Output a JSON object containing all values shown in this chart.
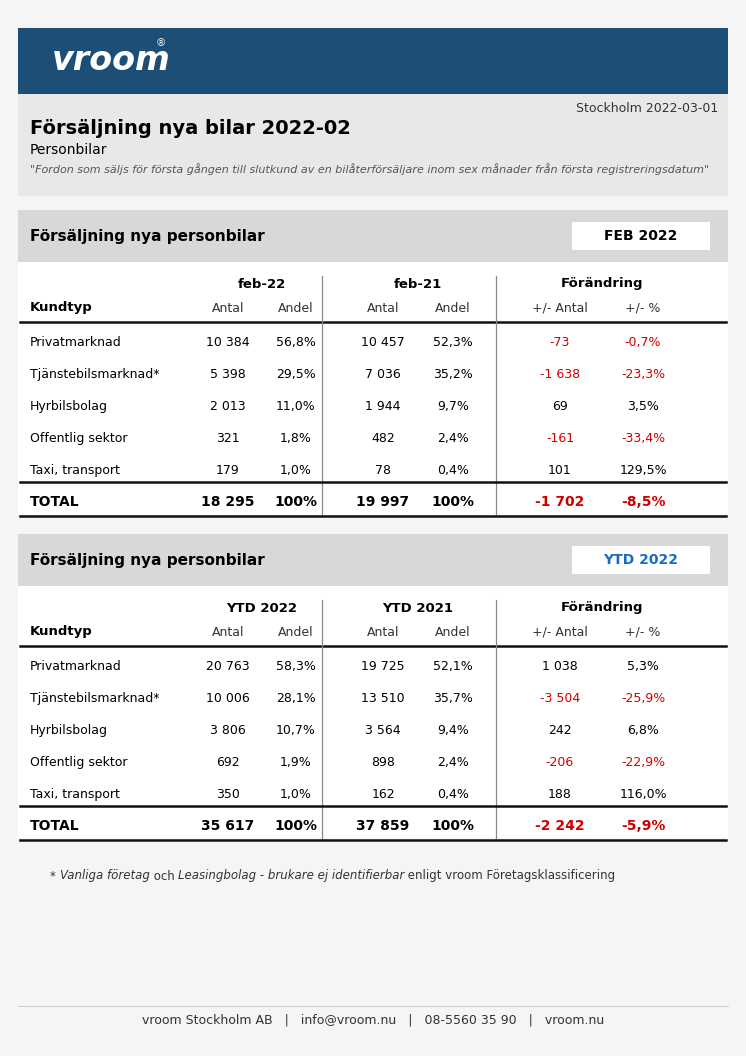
{
  "title": "Försäljning nya bilar 2022-02",
  "subtitle": "Personbilar",
  "quote": "\"Fordon som säljs för första gången till slutkund av en bilåterförsäljare inom sex månader från första registreringsdatum\"",
  "date": "Stockholm 2022-03-01",
  "header_bg": "#1d4f76",
  "light_bg": "#e2e2e2",
  "mid_bg": "#d0d0d0",
  "white": "#ffffff",
  "black": "#000000",
  "red": "#cc0000",
  "blue": "#1a6bc4",
  "table1_header": "Försäljning nya personbilar",
  "table1_badge": "FEB 2022",
  "table1_badge_color": "#000000",
  "table2_header": "Försäljning nya personbilar",
  "table2_badge": "YTD 2022",
  "table2_badge_color": "#1a6bc4",
  "col_headers1": [
    "feb-22",
    "feb-21",
    "Förändring"
  ],
  "col_headers2": [
    "YTD 2022",
    "YTD 2021",
    "Förändring"
  ],
  "sub_headers": [
    "Antal",
    "Andel",
    "Antal",
    "Andel",
    "+/- Antal",
    "+/- %"
  ],
  "row_label": "Kundtyp",
  "rows1": [
    [
      "Privatmarknad",
      "10 384",
      "56,8%",
      "10 457",
      "52,3%",
      "-73",
      "-0,7%"
    ],
    [
      "Tjänstebilsmarknad*",
      "5 398",
      "29,5%",
      "7 036",
      "35,2%",
      "-1 638",
      "-23,3%"
    ],
    [
      "Hyrbilsbolag",
      "2 013",
      "11,0%",
      "1 944",
      "9,7%",
      "69",
      "3,5%"
    ],
    [
      "Offentlig sektor",
      "321",
      "1,8%",
      "482",
      "2,4%",
      "-161",
      "-33,4%"
    ],
    [
      "Taxi, transport",
      "179",
      "1,0%",
      "78",
      "0,4%",
      "101",
      "129,5%"
    ]
  ],
  "total1": [
    "TOTAL",
    "18 295",
    "100%",
    "19 997",
    "100%",
    "-1 702",
    "-8,5%"
  ],
  "rows2": [
    [
      "Privatmarknad",
      "20 763",
      "58,3%",
      "19 725",
      "52,1%",
      "1 038",
      "5,3%"
    ],
    [
      "Tjänstebilsmarknad*",
      "10 006",
      "28,1%",
      "13 510",
      "35,7%",
      "-3 504",
      "-25,9%"
    ],
    [
      "Hyrbilsbolag",
      "3 806",
      "10,7%",
      "3 564",
      "9,4%",
      "242",
      "6,8%"
    ],
    [
      "Offentlig sektor",
      "692",
      "1,9%",
      "898",
      "2,4%",
      "-206",
      "-22,9%"
    ],
    [
      "Taxi, transport",
      "350",
      "1,0%",
      "162",
      "0,4%",
      "188",
      "116,0%"
    ]
  ],
  "total2": [
    "TOTAL",
    "35 617",
    "100%",
    "37 859",
    "100%",
    "-2 242",
    "-5,9%"
  ],
  "red_rows1": [
    0,
    1,
    3
  ],
  "red_rows2": [
    1,
    3
  ],
  "footnote1_normal1": "* ",
  "footnote1_italic1": "Vanliga företag",
  "footnote1_normal2": " och ",
  "footnote1_italic2": "Leasingbolag - brukare ej identifierbar",
  "footnote1_normal3": " enligt vroom Företagsklassificering",
  "footer": "vroom Stockholm AB   |   info@vroom.nu   |   08-5560 35 90   |   vroom.nu"
}
